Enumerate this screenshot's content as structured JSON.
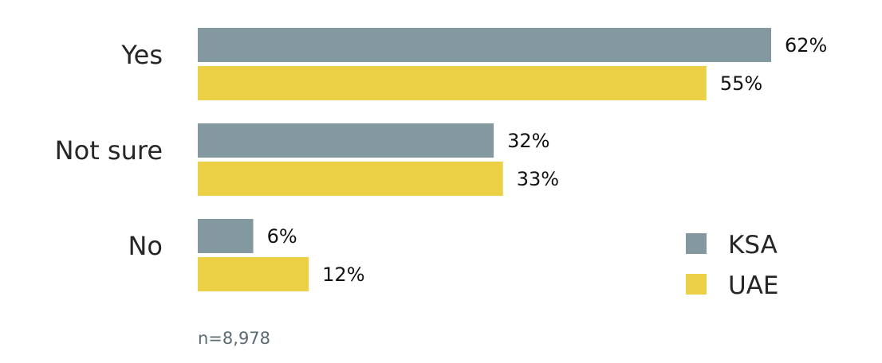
{
  "chart_data": {
    "type": "bar",
    "orientation": "horizontal",
    "categories": [
      "Yes",
      "Not sure",
      "No"
    ],
    "series": [
      {
        "name": "KSA",
        "values": [
          62,
          32,
          6
        ],
        "labels": [
          "62%",
          "32%",
          "6%"
        ],
        "color": "#84999f"
      },
      {
        "name": "UAE",
        "values": [
          55,
          33,
          12
        ],
        "labels": [
          "55%",
          "33%",
          "12%"
        ],
        "color": "#ebcf45"
      }
    ],
    "xlim": [
      0,
      62
    ],
    "grid": false,
    "legend_position": "bottom-right",
    "note": "n=8,978"
  }
}
